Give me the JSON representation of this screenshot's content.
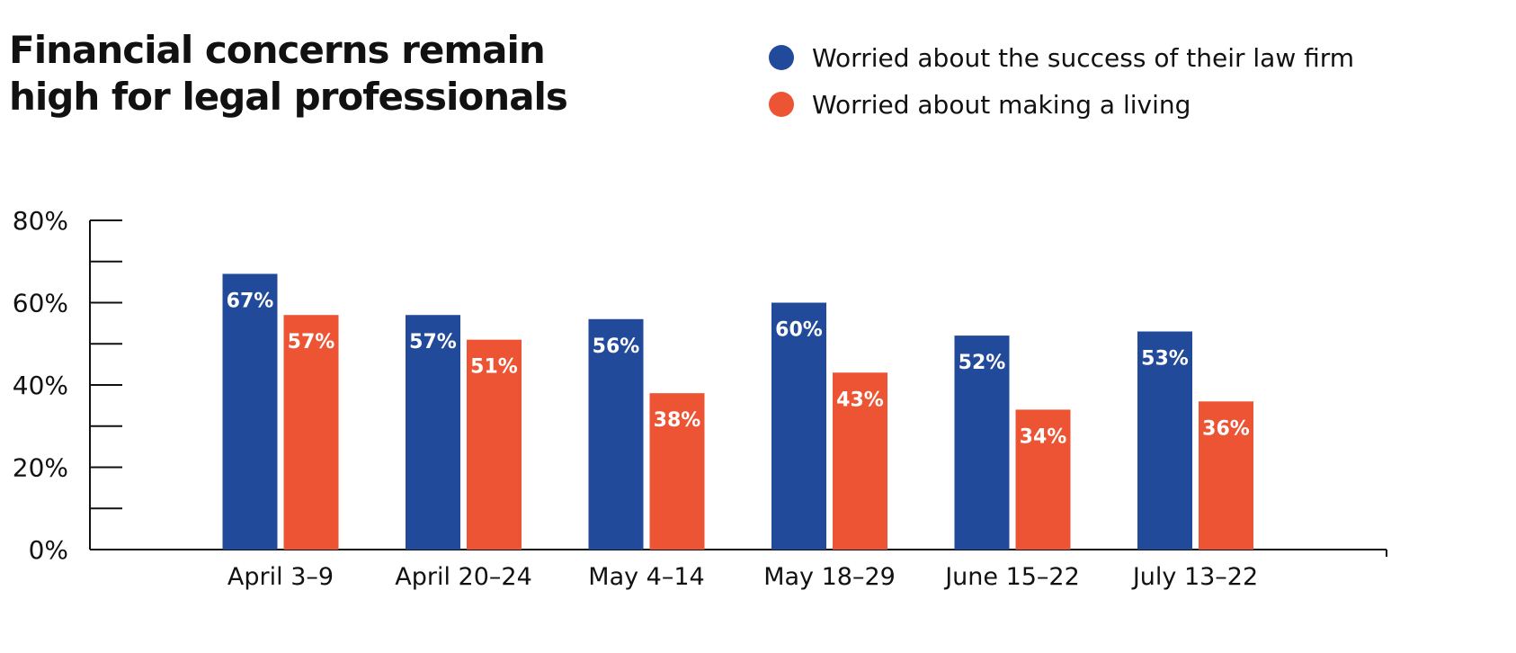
{
  "chart_data": {
    "type": "bar",
    "title_lines": [
      "Financial concerns remain",
      "high for legal professionals"
    ],
    "categories": [
      "April 3–9",
      "April 20–24",
      "May 4–14",
      "May 18–29",
      "June 15–22",
      "July 13–22"
    ],
    "series": [
      {
        "name": "Worried about the success of their law firm",
        "color": "#224a9a",
        "values": [
          67,
          57,
          56,
          60,
          52,
          53
        ],
        "labels": [
          "67%",
          "57%",
          "56%",
          "60%",
          "52%",
          "53%"
        ]
      },
      {
        "name": "Worried about making a living",
        "color": "#ec5433",
        "values": [
          57,
          51,
          38,
          43,
          34,
          36
        ],
        "labels": [
          "57%",
          "51%",
          "38%",
          "43%",
          "34%",
          "36%"
        ]
      }
    ],
    "ylim": [
      0,
      80
    ],
    "yticks": [
      0,
      20,
      40,
      60,
      80
    ],
    "ytick_labels": [
      "0%",
      "20%",
      "40%",
      "60%",
      "80%"
    ],
    "minor_ticks": [
      10,
      30,
      50,
      70
    ],
    "xlabel": "",
    "ylabel": "",
    "legend_position": "top-right"
  }
}
